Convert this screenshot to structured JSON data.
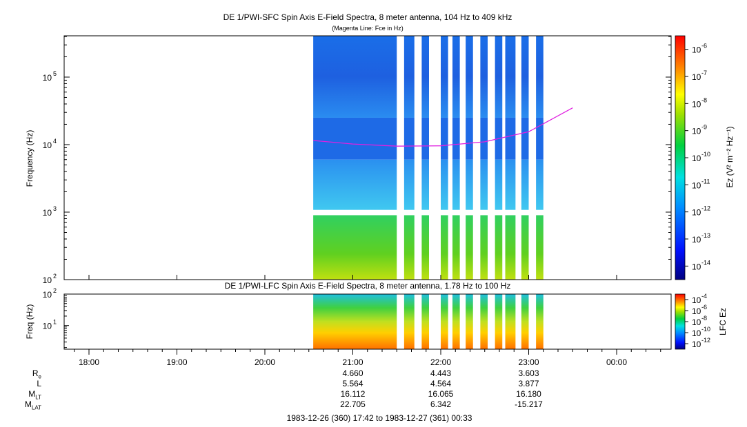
{
  "top_panel": {
    "title": "DE 1/PWI-SFC  Spin Axis E-Field Spectra, 8 meter antenna, 104 Hz to 409 kHz",
    "subtitle": "(Magenta Line: Fce in Hz)",
    "ylabel": "Frequency (Hz)",
    "colorbar_label": "Ez (V² m⁻² Hz⁻¹)",
    "y_ticks": [
      {
        "exp": "2",
        "v": 100
      },
      {
        "exp": "3",
        "v": 1000
      },
      {
        "exp": "4",
        "v": 10000
      },
      {
        "exp": "5",
        "v": 100000
      }
    ],
    "colorbar_ticks": [
      "-14",
      "-13",
      "-12",
      "-11",
      "-10",
      "-9",
      "-8",
      "-7",
      "-6"
    ]
  },
  "bottom_panel": {
    "title": "DE 1/PWI-LFC  Spin Axis E-Field Spectra, 8 meter antenna, 1.78 Hz to 100 Hz",
    "ylabel": "Freq (Hz)",
    "colorbar_label": "LFC Ez",
    "y_ticks": [
      {
        "exp": "1",
        "v": 10
      },
      {
        "exp": "2",
        "v": 100
      }
    ],
    "colorbar_ticks": [
      "-12",
      "-10",
      "-8",
      "-6",
      "-4"
    ]
  },
  "x_ticks": [
    "18:00",
    "19:00",
    "20:00",
    "21:00",
    "22:00",
    "23:00",
    "00:00"
  ],
  "ephemeris": {
    "labels": [
      {
        "main": "R",
        "sub": "e"
      },
      {
        "main": "L",
        "sub": ""
      },
      {
        "main": "M",
        "sub": "LT"
      },
      {
        "main": "M",
        "sub": "LAT"
      }
    ],
    "columns": [
      {
        "time": "21:00",
        "values": [
          "4.660",
          "5.564",
          "16.112",
          "22.705"
        ]
      },
      {
        "time": "22:00",
        "values": [
          "4.443",
          "4.564",
          "16.065",
          "6.342"
        ]
      },
      {
        "time": "23:00",
        "values": [
          "3.603",
          "3.877",
          "16.180",
          "-15.217"
        ]
      }
    ]
  },
  "footer": "1983-12-26 (360) 17:42 to 1983-12-27 (361) 00:33",
  "chart_data": {
    "type": "heatmap",
    "title": "DE 1/PWI-SFC  Spin Axis E-Field Spectra, 8 meter antenna, 104 Hz to 409 kHz",
    "ylabel": "Frequency (Hz)",
    "xlim": [
      "17:42",
      "00:33"
    ],
    "ylim": [
      100,
      409000
    ],
    "yscale": "log",
    "colorscale": "log",
    "clim": [
      1e-14,
      1e-06
    ],
    "data_segments_utc": [
      [
        "20:33",
        "21:30"
      ],
      [
        "21:35",
        "21:42"
      ],
      [
        "21:47",
        "21:52"
      ],
      [
        "22:00",
        "22:05"
      ],
      [
        "22:08",
        "22:13"
      ],
      [
        "22:17",
        "22:22"
      ],
      [
        "22:27",
        "22:32"
      ],
      [
        "22:37",
        "22:42"
      ],
      [
        "22:44",
        "22:51"
      ],
      [
        "22:55",
        "23:00"
      ],
      [
        "23:05",
        "23:10"
      ]
    ],
    "fce_line": {
      "name": "Fce",
      "color": "#e020e0",
      "x": [
        "20:33",
        "21:00",
        "21:30",
        "22:00",
        "22:30",
        "23:00",
        "23:30"
      ],
      "y": [
        11500,
        10200,
        9500,
        9600,
        11000,
        15500,
        35000
      ]
    }
  }
}
